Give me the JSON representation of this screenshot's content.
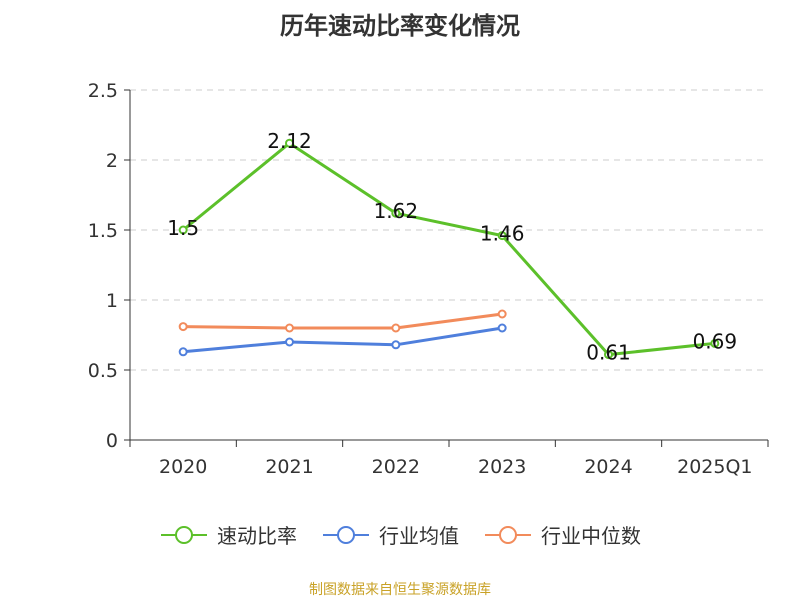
{
  "chart_data": {
    "type": "line",
    "title": "历年速动比率变化情况",
    "categories": [
      "2020",
      "2021",
      "2022",
      "2023",
      "2024",
      "2025Q1"
    ],
    "ylim": [
      0,
      2.5
    ],
    "yticks": [
      "0",
      "0.5",
      "1",
      "1.5",
      "2",
      "2.5"
    ],
    "grid": true,
    "legend_position": "bottom",
    "series": [
      {
        "name": "速动比率",
        "color": "#5cc02a",
        "values": [
          1.5,
          2.12,
          1.62,
          1.46,
          0.61,
          0.69
        ],
        "labels": [
          "1.5",
          "2.12",
          "1.62",
          "1.46",
          "0.61",
          "0.69"
        ]
      },
      {
        "name": "行业均值",
        "color": "#4f7fdc",
        "values": [
          0.63,
          0.7,
          0.68,
          0.8,
          null,
          null
        ]
      },
      {
        "name": "行业中位数",
        "color": "#f28b5b",
        "values": [
          0.81,
          0.8,
          0.8,
          0.9,
          null,
          null
        ]
      }
    ]
  },
  "footer": {
    "source": "制图数据来自恒生聚源数据库"
  }
}
